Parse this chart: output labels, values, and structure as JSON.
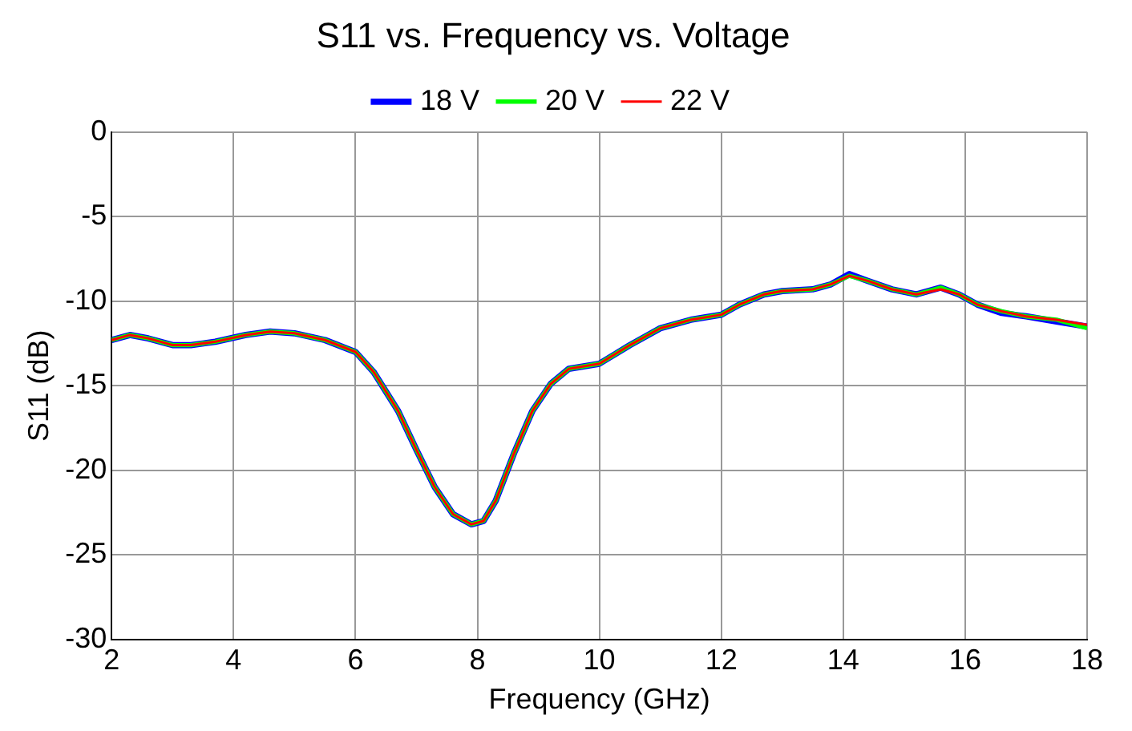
{
  "chart_data": {
    "type": "line",
    "title": "S11 vs. Frequency vs. Voltage",
    "xlabel": "Frequency (GHz)",
    "ylabel": "S11 (dB)",
    "x": [
      2.0,
      2.3,
      2.6,
      3.0,
      3.3,
      3.7,
      4.2,
      4.6,
      5.0,
      5.5,
      6.0,
      6.3,
      6.7,
      7.0,
      7.3,
      7.6,
      7.9,
      8.1,
      8.3,
      8.6,
      8.9,
      9.2,
      9.5,
      10.0,
      10.5,
      11.0,
      11.5,
      12.0,
      12.3,
      12.7,
      13.0,
      13.5,
      13.8,
      14.1,
      14.4,
      14.8,
      15.2,
      15.6,
      15.9,
      16.2,
      16.6,
      17.0,
      17.5,
      18.0
    ],
    "series": [
      {
        "name": "18 V",
        "color": "#0000ff",
        "values": [
          -12.3,
          -12.0,
          -12.2,
          -12.6,
          -12.6,
          -12.4,
          -12.0,
          -11.8,
          -11.9,
          -12.3,
          -13.0,
          -14.2,
          -16.5,
          -18.8,
          -21.0,
          -22.6,
          -23.2,
          -23.0,
          -21.8,
          -19.0,
          -16.5,
          -14.9,
          -14.0,
          -13.7,
          -12.6,
          -11.6,
          -11.1,
          -10.8,
          -10.2,
          -9.6,
          -9.4,
          -9.3,
          -9.0,
          -8.4,
          -8.8,
          -9.3,
          -9.6,
          -9.2,
          -9.6,
          -10.2,
          -10.7,
          -10.9,
          -11.2,
          -11.5
        ]
      },
      {
        "name": "20 V",
        "color": "#00ff00",
        "values": [
          -12.3,
          -12.0,
          -12.2,
          -12.6,
          -12.6,
          -12.4,
          -12.0,
          -11.8,
          -11.9,
          -12.3,
          -13.0,
          -14.2,
          -16.5,
          -18.8,
          -21.0,
          -22.6,
          -23.2,
          -23.0,
          -21.8,
          -19.0,
          -16.5,
          -14.9,
          -14.0,
          -13.7,
          -12.6,
          -11.6,
          -11.1,
          -10.8,
          -10.2,
          -9.6,
          -9.4,
          -9.3,
          -9.0,
          -8.5,
          -8.8,
          -9.3,
          -9.6,
          -9.2,
          -9.6,
          -10.2,
          -10.6,
          -10.9,
          -11.1,
          -11.6
        ]
      },
      {
        "name": "22 V",
        "color": "#ff0000",
        "values": [
          -12.3,
          -12.0,
          -12.2,
          -12.6,
          -12.6,
          -12.4,
          -12.0,
          -11.8,
          -11.9,
          -12.3,
          -13.0,
          -14.2,
          -16.5,
          -18.8,
          -21.0,
          -22.6,
          -23.2,
          -23.0,
          -21.8,
          -19.0,
          -16.5,
          -14.9,
          -14.0,
          -13.7,
          -12.6,
          -11.6,
          -11.1,
          -10.8,
          -10.2,
          -9.6,
          -9.4,
          -9.3,
          -9.0,
          -8.5,
          -8.8,
          -9.3,
          -9.6,
          -9.3,
          -9.6,
          -10.2,
          -10.6,
          -10.9,
          -11.1,
          -11.4
        ]
      }
    ],
    "xlim": [
      2,
      18
    ],
    "xticks": [
      2,
      4,
      6,
      8,
      10,
      12,
      14,
      16,
      18
    ],
    "ylim": [
      -30,
      0
    ],
    "yticks": [
      -30,
      -25,
      -20,
      -15,
      -10,
      -5,
      0
    ],
    "grid": true,
    "legend": "top",
    "marker": "none",
    "line_style": "solid"
  }
}
